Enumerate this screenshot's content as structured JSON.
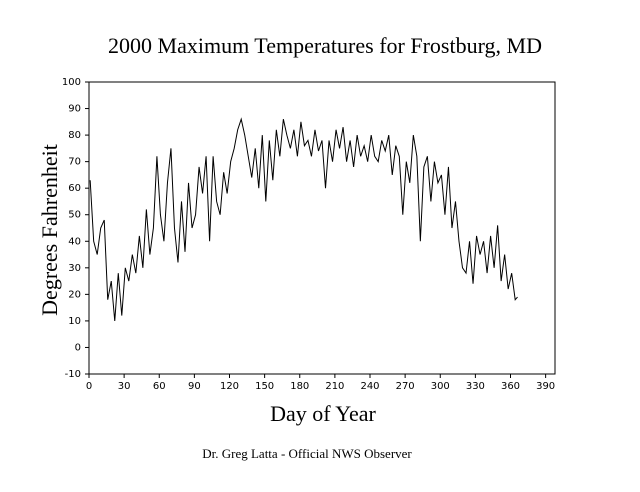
{
  "chart_data": {
    "type": "line",
    "title": "2000 Maximum Temperatures for Frostburg, MD",
    "x_label": "Day of Year",
    "y_label": "Degrees Fahrenheit",
    "footer": "Dr. Greg Latta - Official NWS Observer",
    "color": "#000000",
    "grid": false,
    "x": [
      1,
      4,
      7,
      10,
      13,
      16,
      19,
      22,
      25,
      28,
      31,
      34,
      37,
      40,
      43,
      46,
      49,
      52,
      55,
      58,
      61,
      64,
      67,
      70,
      73,
      76,
      79,
      82,
      85,
      88,
      91,
      94,
      97,
      100,
      103,
      106,
      109,
      112,
      115,
      118,
      121,
      124,
      127,
      130,
      133,
      136,
      139,
      142,
      145,
      148,
      151,
      154,
      157,
      160,
      163,
      166,
      169,
      172,
      175,
      178,
      181,
      184,
      187,
      190,
      193,
      196,
      199,
      202,
      205,
      208,
      211,
      214,
      217,
      220,
      223,
      226,
      229,
      232,
      235,
      238,
      241,
      244,
      247,
      250,
      253,
      256,
      259,
      262,
      265,
      268,
      271,
      274,
      277,
      280,
      283,
      286,
      289,
      292,
      295,
      298,
      301,
      304,
      307,
      310,
      313,
      316,
      319,
      322,
      325,
      328,
      331,
      334,
      337,
      340,
      343,
      346,
      349,
      352,
      355,
      358,
      361,
      364,
      366
    ],
    "values": [
      63,
      40,
      35,
      45,
      48,
      18,
      25,
      10,
      28,
      12,
      30,
      25,
      35,
      28,
      42,
      30,
      52,
      35,
      45,
      72,
      50,
      40,
      62,
      75,
      45,
      32,
      55,
      36,
      62,
      45,
      50,
      68,
      58,
      72,
      40,
      72,
      55,
      50,
      66,
      58,
      70,
      75,
      82,
      86,
      80,
      72,
      64,
      75,
      60,
      80,
      55,
      78,
      63,
      82,
      72,
      86,
      80,
      75,
      82,
      72,
      85,
      76,
      78,
      72,
      82,
      74,
      78,
      60,
      78,
      70,
      82,
      75,
      83,
      70,
      78,
      68,
      80,
      72,
      76,
      70,
      80,
      72,
      70,
      78,
      74,
      80,
      65,
      76,
      72,
      50,
      70,
      62,
      80,
      72,
      40,
      68,
      72,
      55,
      70,
      62,
      65,
      50,
      68,
      45,
      55,
      40,
      30,
      28,
      40,
      24,
      42,
      35,
      40,
      28,
      42,
      30,
      46,
      25,
      35,
      22,
      28,
      18,
      19
    ],
    "xlim": [
      0,
      398
    ],
    "ylim": [
      -10,
      100
    ],
    "xticks": [
      0,
      30,
      60,
      90,
      120,
      150,
      180,
      210,
      240,
      270,
      300,
      330,
      360,
      390
    ],
    "yticks": [
      -10,
      0,
      10,
      20,
      30,
      40,
      50,
      60,
      70,
      80,
      90,
      100
    ]
  }
}
